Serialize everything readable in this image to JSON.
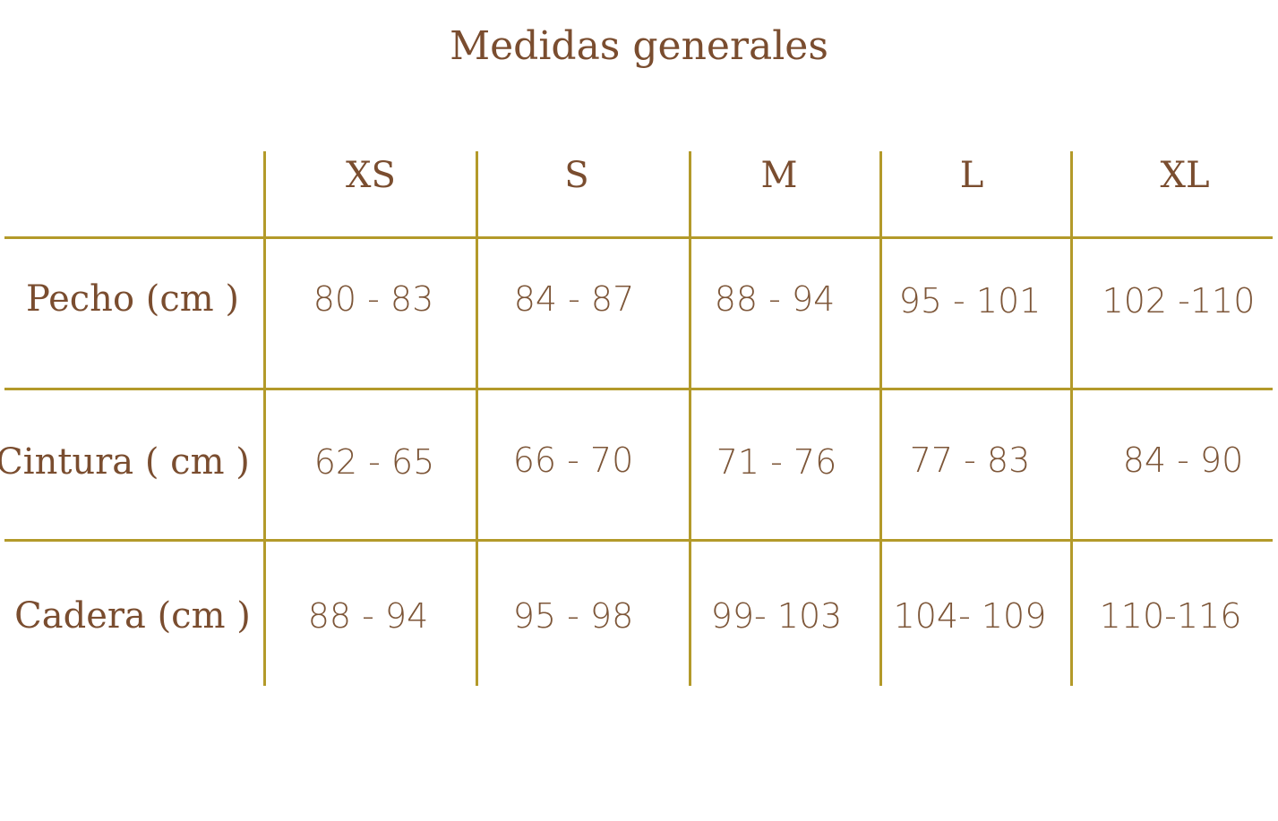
{
  "title": "Medidas generales",
  "colors": {
    "text": "#7a4d2f",
    "grid": "#b39a2a",
    "background": "#ffffff"
  },
  "table": {
    "headers": [
      "XS",
      "S",
      "M",
      "L",
      "XL"
    ],
    "rows": [
      {
        "label": "Pecho (cm )",
        "values": [
          "80 - 83",
          "84 - 87",
          "88 - 94",
          "95 - 101",
          "102 -110"
        ]
      },
      {
        "label": "Cintura ( cm )",
        "values": [
          "62 - 65",
          "66 - 70",
          "71 - 76",
          "77 - 83",
          "84 - 90"
        ]
      },
      {
        "label": "Cadera (cm )",
        "values": [
          "88 - 94",
          "95 - 98",
          "99- 103",
          "104- 109",
          "110-116"
        ]
      }
    ]
  }
}
